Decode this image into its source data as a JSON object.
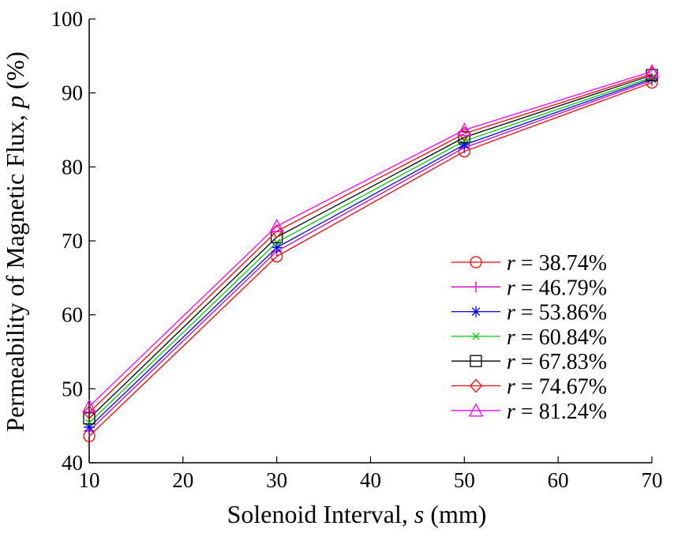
{
  "chart_data": {
    "type": "line",
    "xlabel": {
      "text": "Solenoid Interval, ",
      "var": "s",
      "unit": " (mm)"
    },
    "ylabel": {
      "text": "Permeability of Magnetic Flux, ",
      "var": "p",
      "unit": " (%)"
    },
    "xlim": [
      10,
      70
    ],
    "ylim": [
      40,
      100
    ],
    "xticks": [
      "10",
      "20",
      "30",
      "40",
      "50",
      "60",
      "70"
    ],
    "yticks": [
      "40",
      "50",
      "60",
      "70",
      "80",
      "90",
      "100"
    ],
    "x": [
      10,
      30,
      50,
      70
    ],
    "grid": false,
    "legend_position": "bottom-right",
    "series": [
      {
        "name": "r = 38.74%",
        "var": "r",
        "value_text": " = 38.74%",
        "color": "#ff0000",
        "marker": "circle",
        "values": [
          43.6,
          67.9,
          82.1,
          91.4
        ]
      },
      {
        "name": "r = 46.79%",
        "var": "r",
        "value_text": " = 46.79%",
        "color": "#cc00cc",
        "marker": "plus",
        "values": [
          44.3,
          68.6,
          82.6,
          91.7
        ]
      },
      {
        "name": "r = 53.86%",
        "var": "r",
        "value_text": " = 53.86%",
        "color": "#0000ff",
        "marker": "asterisk",
        "values": [
          44.8,
          69.1,
          83.0,
          91.9
        ]
      },
      {
        "name": "r =  60.84%",
        "var": "r",
        "value_text": " =  60.84%",
        "color": "#00cc00",
        "marker": "x",
        "values": [
          45.4,
          69.8,
          83.5,
          92.1
        ]
      },
      {
        "name": "r = 67.83%",
        "var": "r",
        "value_text": " = 67.83%",
        "color": "#000000",
        "marker": "square",
        "values": [
          46.0,
          70.5,
          84.0,
          92.4
        ]
      },
      {
        "name": "r = 74.67%",
        "var": "r",
        "value_text": " = 74.67%",
        "color": "#ff0000",
        "marker": "diamond",
        "values": [
          46.8,
          71.3,
          84.5,
          92.6
        ]
      },
      {
        "name": "r = 81.24%",
        "var": "r",
        "value_text": " = 81.24%",
        "color": "#ff00ff",
        "marker": "triangle",
        "values": [
          47.6,
          72.0,
          85.0,
          92.9
        ]
      }
    ]
  }
}
